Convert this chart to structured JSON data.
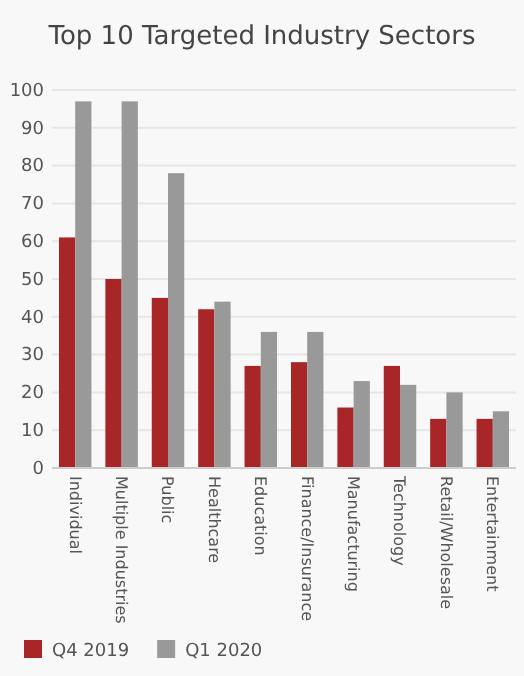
{
  "chart_data": {
    "type": "bar",
    "title": "Top 10 Targeted Industry Sectors",
    "categories": [
      "Individual",
      "Multiple Industries",
      "Public",
      "Healthcare",
      "Education",
      "Finance/Insurance",
      "Manufacturing",
      "Technology",
      "Retail/Wholesale",
      "Entertainment"
    ],
    "series": [
      {
        "name": "Q4 2019",
        "color": "#a82628",
        "values": [
          61,
          50,
          45,
          42,
          27,
          28,
          16,
          27,
          13,
          13
        ]
      },
      {
        "name": "Q1 2020",
        "color": "#999999",
        "values": [
          97,
          97,
          78,
          44,
          36,
          36,
          23,
          22,
          20,
          15
        ]
      }
    ],
    "ylim": [
      0,
      100
    ],
    "yticks": [
      0,
      10,
      20,
      30,
      40,
      50,
      60,
      70,
      80,
      90,
      100
    ],
    "grid": "y",
    "legend": "bottom left"
  }
}
